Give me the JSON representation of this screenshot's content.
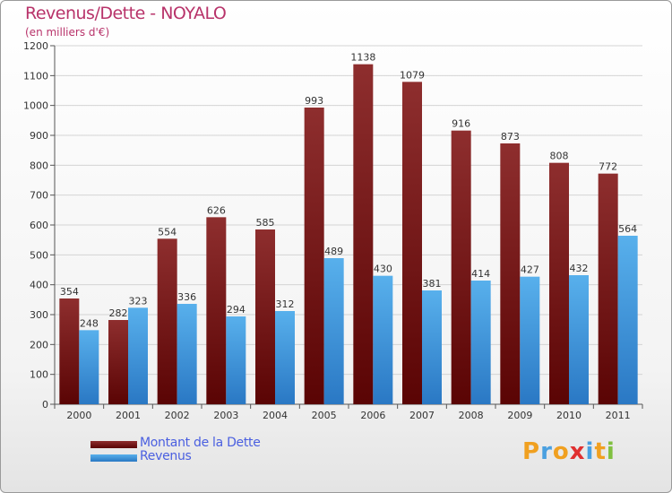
{
  "title": "Revenus/Dette - NOYALO",
  "subtitle": "(en milliers d'€)",
  "chart_data": {
    "type": "bar",
    "title": "Revenus/Dette - NOYALO",
    "ylabel": "(en milliers d'€)",
    "xlabel": "",
    "ylim": [
      0,
      1200
    ],
    "yticks": [
      0,
      100,
      200,
      300,
      400,
      500,
      600,
      700,
      800,
      900,
      1000,
      1100,
      1200
    ],
    "grid": true,
    "categories": [
      "2000",
      "2001",
      "2002",
      "2003",
      "2004",
      "2005",
      "2006",
      "2007",
      "2008",
      "2009",
      "2010",
      "2011"
    ],
    "series": [
      {
        "name": "Montant de la Dette",
        "color": "#7a1a1a",
        "values": [
          354,
          282,
          554,
          626,
          585,
          993,
          1138,
          1079,
          916,
          873,
          808,
          772
        ]
      },
      {
        "name": "Revenus",
        "color": "#4ea8e8",
        "values": [
          248,
          323,
          336,
          294,
          312,
          489,
          430,
          381,
          414,
          427,
          432,
          564
        ]
      }
    ]
  },
  "legend": {
    "debt_label": "Montant de la Dette",
    "revenue_label": "Revenus",
    "debt_color": "#6b0f0f",
    "revenue_color": "#4ea8e8"
  },
  "logo": {
    "letters": [
      "P",
      "r",
      "o",
      "x",
      "i",
      "t",
      "i"
    ],
    "colors": [
      "#f0a020",
      "#4aa0e0",
      "#f0a020",
      "#e03030",
      "#4aa0e0",
      "#f0a020",
      "#80c040"
    ]
  }
}
